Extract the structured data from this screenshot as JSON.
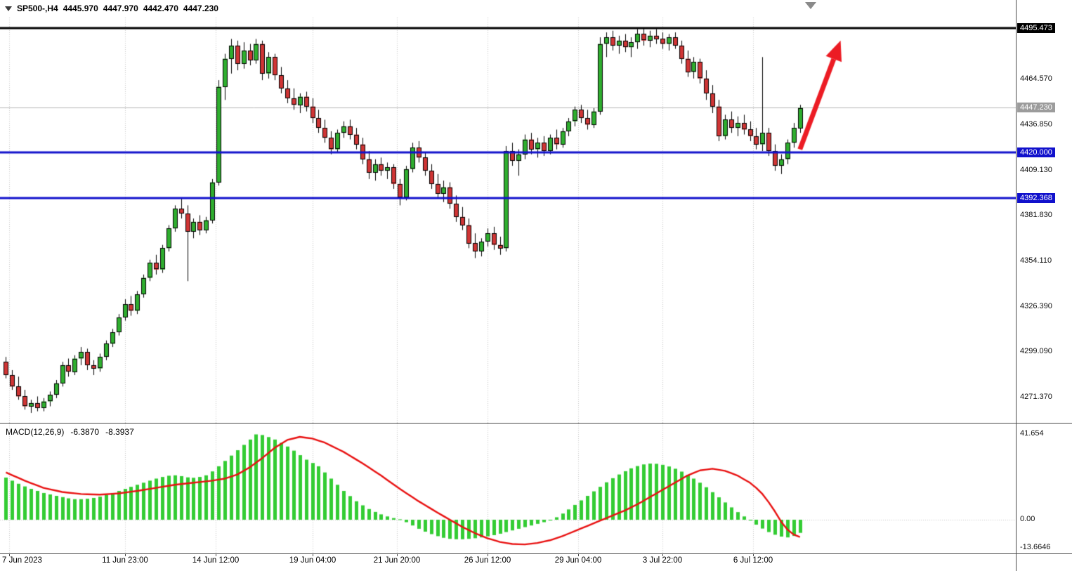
{
  "header": {
    "symbol": "SP500-,H4",
    "open": "4445.970",
    "high": "4447.970",
    "low": "4442.470",
    "close": "4447.230"
  },
  "indicator_panel": {
    "name": "MACD(12,26,9)",
    "macd_value": "-6.3870",
    "signal_value": "-8.3937"
  },
  "price_axis": {
    "labels": [
      {
        "text": "4495.473",
        "value": 4495.473,
        "style": "black"
      },
      {
        "text": "4464.570",
        "value": 4464.57,
        "style": "plain"
      },
      {
        "text": "4447.230",
        "value": 4447.23,
        "style": "current"
      },
      {
        "text": "4436.850",
        "value": 4436.85,
        "style": "plain"
      },
      {
        "text": "4420.000",
        "value": 4420.0,
        "style": "blue"
      },
      {
        "text": "4409.130",
        "value": 4409.13,
        "style": "plain"
      },
      {
        "text": "4392.368",
        "value": 4392.368,
        "style": "blue"
      },
      {
        "text": "4381.830",
        "value": 4381.83,
        "style": "plain"
      },
      {
        "text": "4354.110",
        "value": 4354.11,
        "style": "plain"
      },
      {
        "text": "4326.390",
        "value": 4326.39,
        "style": "plain"
      },
      {
        "text": "4299.090",
        "value": 4299.09,
        "style": "plain"
      },
      {
        "text": "4271.370",
        "value": 4271.37,
        "style": "plain"
      }
    ]
  },
  "macd_axis": {
    "labels": [
      {
        "text": "41.654",
        "value": 41.654
      },
      {
        "text": "0.00",
        "value": 0
      },
      {
        "text": "-13.6646",
        "value": -13.6646
      }
    ]
  },
  "time_axis": [
    {
      "label": "7 Jun 2023",
      "bar": 0.5
    },
    {
      "label": "11 Jun 23:00",
      "bar": 19
    },
    {
      "label": "14 Jun 12:00",
      "bar": 33.5
    },
    {
      "label": "19 Jun 04:00",
      "bar": 49
    },
    {
      "label": "21 Jun 20:00",
      "bar": 62.5
    },
    {
      "label": "26 Jun 12:00",
      "bar": 77
    },
    {
      "label": "29 Jun 04:00",
      "bar": 91.5
    },
    {
      "label": "3 Jul 22:00",
      "bar": 105
    },
    {
      "label": "6 Jul 12:00",
      "bar": 119.5
    }
  ],
  "colors": {
    "bull": "#2fae2f",
    "bear": "#cf3535",
    "outline": "#000000",
    "hist": "#33cc33",
    "signal": "#e81010",
    "level_blue": "#1111cc",
    "level_black": "#000000",
    "arrow": "#ec1c24",
    "current_line": "#b8b8b8",
    "current_tag_bg": "#9c9c9c",
    "grid": "#c6c6c6",
    "axis_text": "#000000"
  },
  "chart_data": {
    "type": "candlestick",
    "symbol": "SP500",
    "timeframe": "H4",
    "title": "SP500-,H4 4445.970 4447.970 4442.470 4447.230",
    "price_range": {
      "min": 4256,
      "max": 4502
    },
    "current_price": 4447.23,
    "levels": [
      {
        "price": 4495.473,
        "color": "#000000",
        "width": 3,
        "label": "4495.473"
      },
      {
        "price": 4420.0,
        "color": "#1111cc",
        "width": 3,
        "label": "4420.000"
      },
      {
        "price": 4392.368,
        "color": "#1111cc",
        "width": 3,
        "label": "4392.368"
      }
    ],
    "arrow": {
      "from_bar": 127,
      "from_price": 4422,
      "to_bar": 133.5,
      "to_price": 4488
    },
    "candles": [
      [
        4293,
        4296,
        4283,
        4285
      ],
      [
        4285,
        4288,
        4276,
        4278
      ],
      [
        4278,
        4284,
        4270,
        4272
      ],
      [
        4272,
        4276,
        4264,
        4266
      ],
      [
        4266,
        4270,
        4262,
        4268
      ],
      [
        4268,
        4272,
        4263,
        4265
      ],
      [
        4265,
        4271,
        4263,
        4269
      ],
      [
        4269,
        4275,
        4266,
        4273
      ],
      [
        4273,
        4282,
        4271,
        4280
      ],
      [
        4280,
        4293,
        4278,
        4291
      ],
      [
        4291,
        4295,
        4284,
        4287
      ],
      [
        4287,
        4297,
        4285,
        4295
      ],
      [
        4295,
        4302,
        4291,
        4299
      ],
      [
        4299,
        4301,
        4288,
        4291
      ],
      [
        4291,
        4294,
        4285,
        4289
      ],
      [
        4289,
        4298,
        4287,
        4296
      ],
      [
        4296,
        4306,
        4294,
        4304
      ],
      [
        4304,
        4313,
        4302,
        4311
      ],
      [
        4311,
        4322,
        4309,
        4320
      ],
      [
        4320,
        4331,
        4318,
        4328
      ],
      [
        4328,
        4333,
        4321,
        4324
      ],
      [
        4324,
        4336,
        4322,
        4334
      ],
      [
        4334,
        4346,
        4332,
        4344
      ],
      [
        4344,
        4355,
        4342,
        4353
      ],
      [
        4353,
        4358,
        4346,
        4349
      ],
      [
        4349,
        4364,
        4347,
        4362
      ],
      [
        4362,
        4376,
        4360,
        4374
      ],
      [
        4374,
        4388,
        4372,
        4386
      ],
      [
        4386,
        4392,
        4380,
        4383
      ],
      [
        4383,
        4388,
        4342,
        4372
      ],
      [
        4372,
        4380,
        4368,
        4378
      ],
      [
        4378,
        4382,
        4370,
        4373
      ],
      [
        4373,
        4381,
        4371,
        4379
      ],
      [
        4379,
        4404,
        4377,
        4402
      ],
      [
        4402,
        4464,
        4400,
        4460
      ],
      [
        4460,
        4480,
        4452,
        4477
      ],
      [
        4477,
        4489,
        4468,
        4485
      ],
      [
        4485,
        4488,
        4470,
        4474
      ],
      [
        4474,
        4487,
        4471,
        4482
      ],
      [
        4482,
        4486,
        4473,
        4476
      ],
      [
        4476,
        4489,
        4474,
        4486
      ],
      [
        4486,
        4488,
        4464,
        4468
      ],
      [
        4468,
        4481,
        4465,
        4478
      ],
      [
        4478,
        4480,
        4464,
        4467
      ],
      [
        4467,
        4472,
        4456,
        4459
      ],
      [
        4459,
        4464,
        4450,
        4453
      ],
      [
        4453,
        4459,
        4446,
        4449
      ],
      [
        4449,
        4456,
        4444,
        4454
      ],
      [
        4454,
        4457,
        4445,
        4448
      ],
      [
        4448,
        4453,
        4438,
        4441
      ],
      [
        4441,
        4446,
        4432,
        4435
      ],
      [
        4435,
        4440,
        4426,
        4429
      ],
      [
        4429,
        4433,
        4419,
        4422
      ],
      [
        4422,
        4434,
        4420,
        4432
      ],
      [
        4432,
        4439,
        4429,
        4436
      ],
      [
        4436,
        4440,
        4428,
        4431
      ],
      [
        4431,
        4435,
        4422,
        4425
      ],
      [
        4425,
        4429,
        4413,
        4416
      ],
      [
        4416,
        4421,
        4404,
        4408
      ],
      [
        4408,
        4416,
        4403,
        4413
      ],
      [
        4413,
        4417,
        4406,
        4409
      ],
      [
        4409,
        4414,
        4404,
        4411
      ],
      [
        4411,
        4413,
        4398,
        4401
      ],
      [
        4401,
        4404,
        4388,
        4393
      ],
      [
        4393,
        4412,
        4391,
        4410
      ],
      [
        4410,
        4426,
        4408,
        4423
      ],
      [
        4423,
        4427,
        4414,
        4417
      ],
      [
        4417,
        4420,
        4406,
        4409
      ],
      [
        4409,
        4413,
        4398,
        4401
      ],
      [
        4401,
        4407,
        4392,
        4395
      ],
      [
        4395,
        4403,
        4390,
        4399
      ],
      [
        4399,
        4402,
        4386,
        4389
      ],
      [
        4389,
        4394,
        4378,
        4381
      ],
      [
        4381,
        4387,
        4373,
        4376
      ],
      [
        4376,
        4380,
        4362,
        4365
      ],
      [
        4365,
        4371,
        4356,
        4360
      ],
      [
        4360,
        4368,
        4357,
        4366
      ],
      [
        4366,
        4374,
        4363,
        4371
      ],
      [
        4371,
        4375,
        4361,
        4364
      ],
      [
        4364,
        4369,
        4358,
        4362
      ],
      [
        4362,
        4424,
        4360,
        4421
      ],
      [
        4421,
        4426,
        4412,
        4415
      ],
      [
        4415,
        4422,
        4406,
        4419
      ],
      [
        4419,
        4431,
        4416,
        4428
      ],
      [
        4428,
        4432,
        4419,
        4422
      ],
      [
        4422,
        4429,
        4417,
        4426
      ],
      [
        4426,
        4430,
        4418,
        4421
      ],
      [
        4421,
        4431,
        4419,
        4429
      ],
      [
        4429,
        4434,
        4422,
        4425
      ],
      [
        4425,
        4435,
        4423,
        4433
      ],
      [
        4433,
        4441,
        4430,
        4439
      ],
      [
        4439,
        4448,
        4436,
        4446
      ],
      [
        4446,
        4449,
        4438,
        4441
      ],
      [
        4441,
        4446,
        4434,
        4437
      ],
      [
        4437,
        4447,
        4435,
        4445
      ],
      [
        4445,
        4490,
        4443,
        4486
      ],
      [
        4486,
        4493,
        4478,
        4490
      ],
      [
        4490,
        4494,
        4482,
        4485
      ],
      [
        4485,
        4491,
        4480,
        4488
      ],
      [
        4488,
        4492,
        4481,
        4484
      ],
      [
        4484,
        4490,
        4478,
        4487
      ],
      [
        4487,
        4495,
        4483,
        4492
      ],
      [
        4492,
        4495.5,
        4485,
        4488
      ],
      [
        4488,
        4494,
        4484,
        4491
      ],
      [
        4491,
        4495,
        4486,
        4489
      ],
      [
        4489,
        4493,
        4483,
        4486
      ],
      [
        4486,
        4492,
        4482,
        4490
      ],
      [
        4490,
        4493,
        4483,
        4485
      ],
      [
        4485,
        4488,
        4474,
        4477
      ],
      [
        4477,
        4482,
        4466,
        4469
      ],
      [
        4469,
        4478,
        4465,
        4475
      ],
      [
        4475,
        4477,
        4462,
        4465
      ],
      [
        4465,
        4470,
        4452,
        4456
      ],
      [
        4456,
        4461,
        4444,
        4448
      ],
      [
        4448,
        4452,
        4427,
        4430
      ],
      [
        4430,
        4443,
        4428,
        4440
      ],
      [
        4440,
        4445,
        4432,
        4435
      ],
      [
        4435,
        4442,
        4430,
        4438
      ],
      [
        4438,
        4443,
        4431,
        4434
      ],
      [
        4434,
        4439,
        4427,
        4430
      ],
      [
        4430,
        4435,
        4422,
        4425
      ],
      [
        4425,
        4478,
        4421,
        4432
      ],
      [
        4432,
        4435,
        4418,
        4421
      ],
      [
        4421,
        4425,
        4409,
        4412
      ],
      [
        4412,
        4419,
        4407,
        4416
      ],
      [
        4416,
        4428,
        4413,
        4426
      ],
      [
        4426,
        4438,
        4423,
        4435
      ],
      [
        4435,
        4449,
        4432,
        4447.2
      ]
    ],
    "macd": {
      "ylim": [
        -16.4,
        46.8
      ],
      "histogram": [
        20.5,
        19,
        17.5,
        16.2,
        15,
        14,
        13,
        12.3,
        11.6,
        11,
        10.4,
        10,
        10,
        10.2,
        10.6,
        11.2,
        12,
        13,
        14,
        15,
        16,
        17,
        18,
        19,
        20,
        20.8,
        21.4,
        21.6,
        21.2,
        20.6,
        20.4,
        20.8,
        21.6,
        23.5,
        26,
        28.6,
        31.2,
        33.8,
        36.4,
        39,
        41.5,
        41.2,
        40.2,
        39,
        37.4,
        35.6,
        33.6,
        31.4,
        29.2,
        27.6,
        26,
        23,
        20,
        17,
        14,
        11.5,
        9,
        7,
        5.2,
        3.8,
        2.6,
        1.6,
        0.8,
        0.2,
        -1.2,
        -2.8,
        -4.4,
        -5.8,
        -7,
        -8,
        -8.8,
        -9.3,
        -9.5,
        -9.5,
        -9.3,
        -9,
        -8.6,
        -8.1,
        -7.5,
        -6.8,
        -6,
        -5.2,
        -4.4,
        -3.6,
        -2.8,
        -2,
        -1.2,
        -0.4,
        1.2,
        3,
        5,
        7.2,
        9.4,
        11.6,
        13.8,
        16,
        18.2,
        20.2,
        22,
        23.6,
        25,
        26.1,
        26.9,
        27.3,
        27.2,
        26.7,
        25.9,
        24.8,
        23.4,
        21.8,
        20,
        18,
        15.8,
        13.4,
        10.9,
        8.4,
        6,
        3.7,
        1.6,
        -0.4,
        -2.4,
        -4.3,
        -6,
        -7.3,
        -8.2,
        -8.6,
        -7.9,
        -6.387
      ],
      "signal_keypoints": [
        [
          0,
          23
        ],
        [
          3,
          19
        ],
        [
          6,
          15.5
        ],
        [
          9,
          13.5
        ],
        [
          12,
          12.5
        ],
        [
          15,
          12.2
        ],
        [
          18,
          12.8
        ],
        [
          21,
          14
        ],
        [
          24,
          15.5
        ],
        [
          27,
          17
        ],
        [
          30,
          18
        ],
        [
          33,
          19
        ],
        [
          35,
          20
        ],
        [
          37,
          22
        ],
        [
          39,
          25.5
        ],
        [
          41,
          30
        ],
        [
          43,
          35
        ],
        [
          45,
          38.8
        ],
        [
          47,
          40.3
        ],
        [
          49,
          39.5
        ],
        [
          51,
          37.5
        ],
        [
          54,
          33
        ],
        [
          57,
          27.5
        ],
        [
          60,
          21.5
        ],
        [
          63,
          15
        ],
        [
          66,
          9
        ],
        [
          69,
          3.5
        ],
        [
          71,
          0
        ],
        [
          73,
          -3.5
        ],
        [
          75,
          -6.5
        ],
        [
          77,
          -9
        ],
        [
          79,
          -10.8
        ],
        [
          81,
          -11.8
        ],
        [
          83,
          -12
        ],
        [
          85,
          -11.3
        ],
        [
          87,
          -10
        ],
        [
          89,
          -8
        ],
        [
          91,
          -5.5
        ],
        [
          93,
          -3
        ],
        [
          95,
          -0.5
        ],
        [
          97,
          2
        ],
        [
          99,
          4.5
        ],
        [
          101,
          7.5
        ],
        [
          103,
          11
        ],
        [
          105,
          14.5
        ],
        [
          107,
          18
        ],
        [
          109,
          21.5
        ],
        [
          111,
          24
        ],
        [
          113,
          24.8
        ],
        [
          115,
          23.8
        ],
        [
          117,
          21.5
        ],
        [
          119,
          18
        ],
        [
          120,
          15.5
        ],
        [
          121,
          12.5
        ],
        [
          122,
          8.5
        ],
        [
          123,
          4
        ],
        [
          124,
          -1
        ],
        [
          125,
          -4.8
        ],
        [
          126,
          -7.2
        ],
        [
          127,
          -8.4
        ]
      ]
    }
  }
}
